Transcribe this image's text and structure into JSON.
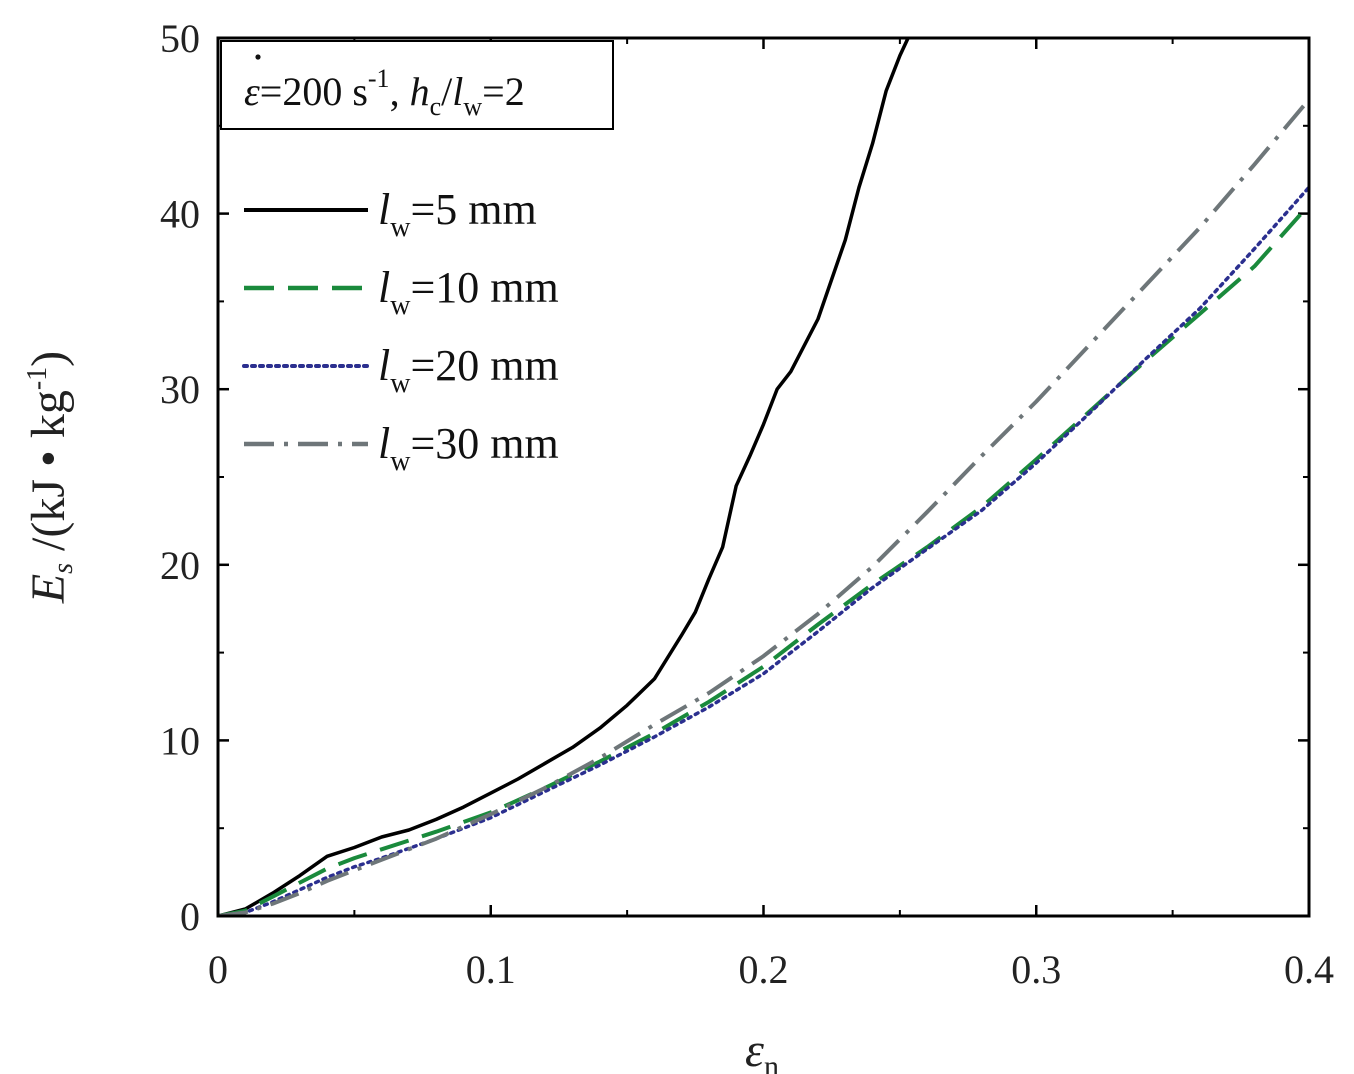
{
  "chart_data": {
    "type": "line",
    "title": "",
    "xlabel": {
      "symbol": "ε",
      "subscript": "n"
    },
    "ylabel": {
      "symbol": "E",
      "subscript": "s",
      "units_prefix": " /(kJ • kg",
      "units_exp": "-1",
      "units_suffix": ")"
    },
    "xlim": [
      0,
      0.4
    ],
    "ylim": [
      0,
      50
    ],
    "xticks": [
      0,
      0.1,
      0.2,
      0.3,
      0.4
    ],
    "xtick_labels": [
      "0",
      "0.1",
      "0.2",
      "0.3",
      "0.4"
    ],
    "yticks": [
      0,
      10,
      20,
      30,
      40,
      50
    ],
    "ytick_labels": [
      "0",
      "10",
      "20",
      "30",
      "40",
      "50"
    ],
    "annotation": {
      "rate_symbol": "ε",
      "rate_value": "=200 s",
      "rate_exp": "-1",
      "sep": ", ",
      "ratio_num": "h",
      "ratio_num_sub": "c",
      "ratio_slash": "/",
      "ratio_den": "l",
      "ratio_den_sub": "w",
      "ratio_value": "=2"
    },
    "legend_position": "upper-left",
    "series": [
      {
        "name": "l_w=5 mm",
        "label_symbol": "l",
        "label_sub": "w",
        "label_value": "=5 mm",
        "color": "#000000",
        "style": "solid",
        "x": [
          0,
          0.01,
          0.02,
          0.03,
          0.04,
          0.05,
          0.06,
          0.07,
          0.08,
          0.09,
          0.1,
          0.11,
          0.12,
          0.13,
          0.14,
          0.15,
          0.16,
          0.17,
          0.175,
          0.18,
          0.185,
          0.19,
          0.195,
          0.2,
          0.205,
          0.21,
          0.22,
          0.23,
          0.235,
          0.24,
          0.245,
          0.25,
          0.253
        ],
        "y": [
          0,
          0.4,
          1.3,
          2.3,
          3.4,
          3.9,
          4.5,
          4.9,
          5.5,
          6.2,
          7.0,
          7.8,
          8.7,
          9.6,
          10.7,
          12.0,
          13.5,
          16.0,
          17.3,
          19.2,
          21.0,
          24.5,
          26.2,
          28.0,
          30.0,
          31.0,
          34.0,
          38.5,
          41.5,
          44.0,
          47.0,
          49.0,
          50.0
        ]
      },
      {
        "name": "l_w=10 mm",
        "label_symbol": "l",
        "label_sub": "w",
        "label_value": "=10 mm",
        "color": "#1a8a3c",
        "style": "dashed",
        "x": [
          0,
          0.01,
          0.02,
          0.03,
          0.04,
          0.05,
          0.06,
          0.08,
          0.1,
          0.12,
          0.14,
          0.16,
          0.18,
          0.2,
          0.22,
          0.24,
          0.26,
          0.28,
          0.3,
          0.32,
          0.34,
          0.36,
          0.38,
          0.4
        ],
        "y": [
          0,
          0.3,
          1.1,
          1.9,
          2.7,
          3.3,
          3.8,
          4.8,
          5.9,
          7.3,
          8.8,
          10.4,
          12.2,
          14.2,
          16.6,
          18.9,
          21.0,
          23.3,
          26.0,
          28.8,
          31.6,
          34.3,
          37.0,
          40.5
        ]
      },
      {
        "name": "l_w=20 mm",
        "label_symbol": "l",
        "label_sub": "w",
        "label_value": "=20 mm",
        "color": "#2b2f8f",
        "style": "dotted",
        "x": [
          0,
          0.01,
          0.02,
          0.03,
          0.04,
          0.05,
          0.06,
          0.08,
          0.1,
          0.12,
          0.14,
          0.16,
          0.18,
          0.2,
          0.22,
          0.24,
          0.26,
          0.28,
          0.3,
          0.32,
          0.34,
          0.36,
          0.38,
          0.4
        ],
        "y": [
          0,
          0.2,
          0.8,
          1.5,
          2.2,
          2.8,
          3.3,
          4.4,
          5.6,
          7.1,
          8.6,
          10.2,
          11.9,
          13.8,
          16.2,
          18.7,
          20.9,
          23.1,
          25.8,
          28.7,
          31.7,
          34.6,
          38.0,
          41.5
        ]
      },
      {
        "name": "l_w=30 mm",
        "label_symbol": "l",
        "label_sub": "w",
        "label_value": "=30 mm",
        "color": "#6e7679",
        "style": "dashdot",
        "x": [
          0,
          0.01,
          0.02,
          0.03,
          0.04,
          0.05,
          0.06,
          0.08,
          0.1,
          0.12,
          0.14,
          0.16,
          0.18,
          0.2,
          0.22,
          0.24,
          0.26,
          0.28,
          0.3,
          0.32,
          0.34,
          0.36,
          0.38,
          0.4
        ],
        "y": [
          0,
          0.2,
          0.7,
          1.3,
          2.0,
          2.6,
          3.2,
          4.4,
          5.8,
          7.3,
          9.0,
          10.9,
          12.7,
          14.8,
          17.2,
          19.9,
          23.0,
          26.2,
          29.3,
          32.6,
          35.9,
          39.2,
          42.8,
          46.5
        ]
      }
    ]
  }
}
